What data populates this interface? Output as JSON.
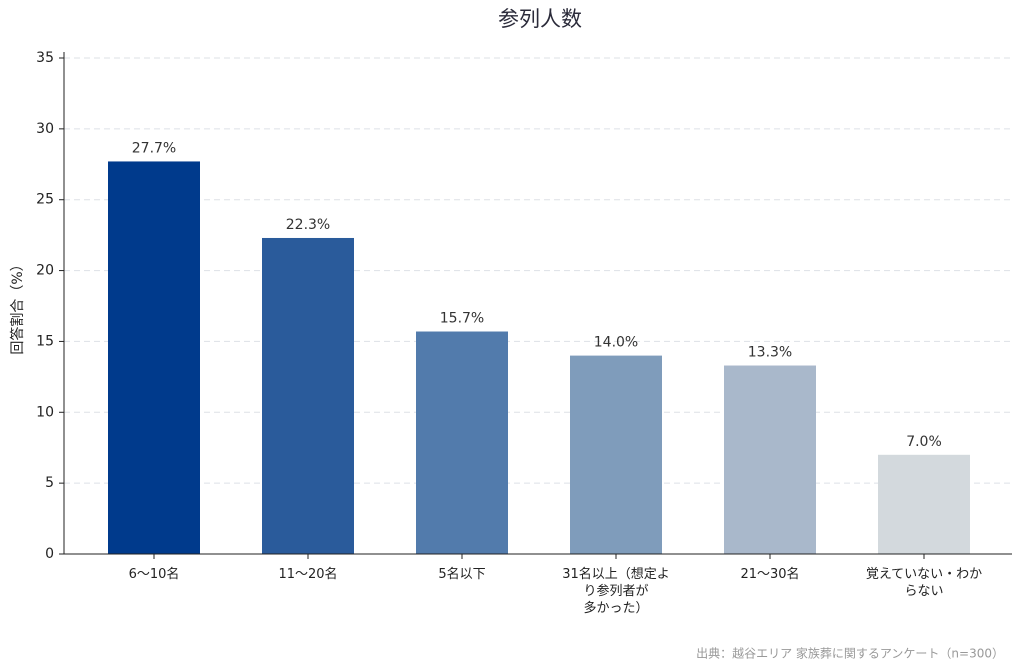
{
  "chart_data": {
    "type": "bar",
    "title": "参列人数",
    "y_label": "回答割合（%）",
    "categories": [
      "6〜10名",
      "11〜20名",
      "5名以下",
      "31名以上（想定よ\nり参列者が\n多かった）",
      "21〜30名",
      "覚えていない・わか\nらない"
    ],
    "values": [
      27.7,
      22.3,
      15.7,
      14.0,
      13.3,
      7.0
    ],
    "value_labels": [
      "27.7%",
      "22.3%",
      "15.7%",
      "14.0%",
      "13.3%",
      "7.0%"
    ],
    "colors": [
      "#003a8c",
      "#2a5b9b",
      "#527bac",
      "#7f9cbb",
      "#a9b8cb",
      "#d3d9dd"
    ],
    "ylim": [
      0,
      35
    ],
    "yticks": [
      0,
      5,
      10,
      15,
      20,
      25,
      30,
      35
    ],
    "grid": true,
    "source": "出典：越谷エリア 家族葬に関するアンケート（n=300）"
  }
}
